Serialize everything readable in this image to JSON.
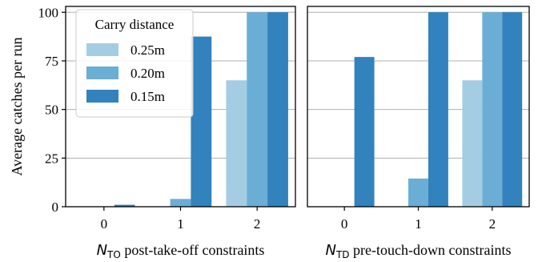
{
  "chart_data": [
    {
      "type": "bar",
      "xlabel_symbol": "N",
      "xlabel_subscript": "TO",
      "xlabel": "post-take-off constraints",
      "ylabel": "Average catches per run",
      "categories": [
        "0",
        "1",
        "2"
      ],
      "yticks": [
        "0",
        "25",
        "50",
        "75",
        "100"
      ],
      "ylim": [
        0,
        103
      ],
      "grid": "horizontal",
      "legend": {
        "title": "Carry distance",
        "placement": "top-left"
      },
      "series": [
        {
          "name": "0.25m",
          "color": "#a4cde4",
          "values": [
            0,
            0,
            65
          ]
        },
        {
          "name": "0.20m",
          "color": "#6aaed6",
          "values": [
            0,
            4,
            100
          ]
        },
        {
          "name": "0.15m",
          "color": "#3182bd",
          "values": [
            1,
            87.5,
            100
          ]
        }
      ]
    },
    {
      "type": "bar",
      "xlabel_symbol": "N",
      "xlabel_subscript": "TD",
      "xlabel": "pre-touch-down constraints",
      "ylabel": "",
      "categories": [
        "0",
        "1",
        "2"
      ],
      "yticks": [
        "0",
        "25",
        "50",
        "75",
        "100"
      ],
      "ylim": [
        0,
        103
      ],
      "grid": "horizontal",
      "series": [
        {
          "name": "0.25m",
          "color": "#a4cde4",
          "values": [
            0,
            0,
            65
          ]
        },
        {
          "name": "0.20m",
          "color": "#6aaed6",
          "values": [
            0,
            14.5,
            100
          ]
        },
        {
          "name": "0.15m",
          "color": "#3182bd",
          "values": [
            77,
            100,
            100
          ]
        }
      ]
    }
  ]
}
